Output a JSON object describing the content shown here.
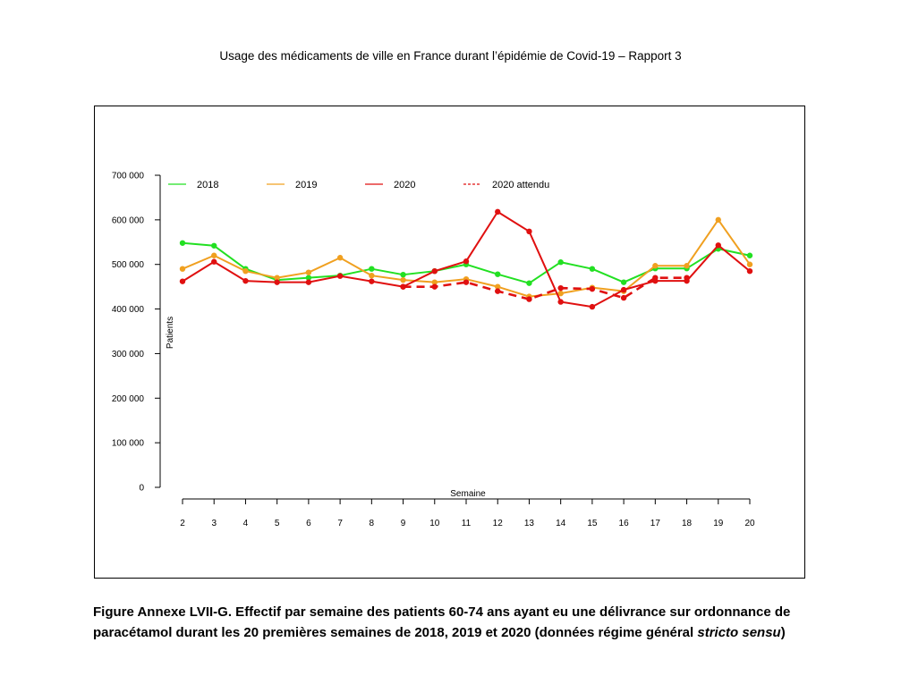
{
  "header": {
    "title": "Usage des médicaments de ville en France durant l’épidémie de Covid-19 – Rapport 3"
  },
  "caption": {
    "main": "Figure Annexe LVII-G. Effectif par semaine des patients 60-74 ans ayant eu une délivrance sur ordonnance de paracétamol durant les 20 premières semaines de 2018, 2019 et 2020 (données régime général ",
    "italic": "stricto sensu",
    "end": ")"
  },
  "chart_data": {
    "type": "line",
    "xlabel": "Semaine",
    "ylabel": "Patients",
    "x": [
      2,
      3,
      4,
      5,
      6,
      7,
      8,
      9,
      10,
      11,
      12,
      13,
      14,
      15,
      16,
      17,
      18,
      19,
      20
    ],
    "ylim": [
      0,
      700000
    ],
    "yticks": [
      0,
      100000,
      200000,
      300000,
      400000,
      500000,
      600000,
      700000
    ],
    "ytick_labels": [
      "0",
      "100 000",
      "200 000",
      "300 000",
      "400 000",
      "500 000",
      "600 000",
      "700 000"
    ],
    "legend_position": "top",
    "series": [
      {
        "name": "2018",
        "color": "#22e022",
        "style": "solid",
        "x": [
          2,
          3,
          4,
          5,
          6,
          7,
          8,
          9,
          10,
          11,
          12,
          13,
          14,
          15,
          16,
          17,
          18,
          19,
          20
        ],
        "values": [
          548000,
          542000,
          490000,
          465000,
          470000,
          475000,
          490000,
          477000,
          485000,
          500000,
          478000,
          458000,
          505000,
          490000,
          460000,
          491000,
          491000,
          535000,
          520000
        ]
      },
      {
        "name": "2019",
        "color": "#f0a020",
        "style": "solid",
        "x": [
          2,
          3,
          4,
          5,
          6,
          7,
          8,
          9,
          10,
          11,
          12,
          13,
          14,
          15,
          16,
          17,
          18,
          19,
          20
        ],
        "values": [
          490000,
          520000,
          485000,
          470000,
          482000,
          515000,
          475000,
          465000,
          460000,
          467000,
          450000,
          428000,
          435000,
          448000,
          440000,
          497000,
          497000,
          600000,
          500000
        ]
      },
      {
        "name": "2020",
        "color": "#e01010",
        "style": "solid",
        "x": [
          2,
          3,
          4,
          5,
          6,
          7,
          8,
          9,
          10,
          11,
          12,
          13,
          14,
          15,
          16,
          17,
          18,
          19,
          20
        ],
        "values": [
          462000,
          506000,
          463000,
          460000,
          460000,
          474000,
          462000,
          450000,
          485000,
          507000,
          618000,
          574000,
          416000,
          405000,
          443000,
          463000,
          463000,
          543000,
          485000
        ]
      },
      {
        "name": "2020 attendu",
        "color": "#e01010",
        "style": "dashed",
        "x": [
          9,
          10,
          11,
          12,
          13,
          14,
          15,
          16,
          17,
          18
        ],
        "values": [
          450000,
          450000,
          460000,
          440000,
          422000,
          447000,
          445000,
          425000,
          470000,
          470000
        ]
      }
    ]
  }
}
